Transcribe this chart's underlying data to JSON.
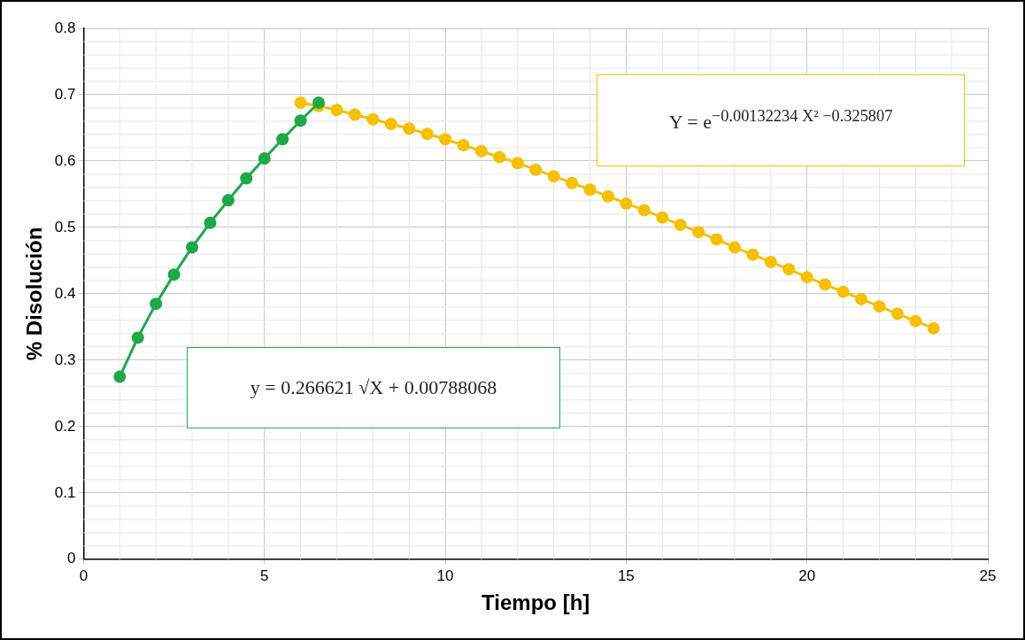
{
  "chart_data": {
    "type": "line",
    "xlabel": "Tiempo [h]",
    "ylabel": "% Disolución",
    "xlim": [
      0,
      25
    ],
    "xticks": [
      0,
      5,
      10,
      15,
      20,
      25
    ],
    "ylim": [
      0,
      0.8
    ],
    "yticks": [
      0,
      0.1,
      0.2,
      0.3,
      0.4,
      0.5,
      0.6,
      0.7,
      0.8
    ],
    "grid": true,
    "legend": false,
    "marker": "circle",
    "line_style": "solid",
    "series": [
      {
        "color": "#f5c000",
        "x": [
          6,
          6.5,
          7,
          7.5,
          8,
          8.5,
          9,
          9.5,
          10,
          10.5,
          11,
          11.5,
          12,
          12.5,
          13,
          13.5,
          14,
          14.5,
          15,
          15.5,
          16,
          16.5,
          17,
          17.5,
          18,
          18.5,
          19,
          19.5,
          20,
          20.5,
          21,
          21.5,
          22,
          22.5,
          23,
          23.5
        ],
        "values": [
          0.688,
          0.683,
          0.677,
          0.67,
          0.663,
          0.656,
          0.649,
          0.641,
          0.633,
          0.624,
          0.615,
          0.606,
          0.597,
          0.587,
          0.577,
          0.567,
          0.557,
          0.547,
          0.536,
          0.526,
          0.515,
          0.504,
          0.493,
          0.482,
          0.47,
          0.459,
          0.448,
          0.437,
          0.425,
          0.414,
          0.403,
          0.392,
          0.381,
          0.37,
          0.359,
          0.348
        ]
      },
      {
        "color": "#1ea84a",
        "x": [
          1,
          1.5,
          2,
          2.5,
          3,
          3.5,
          4,
          4.5,
          5,
          5.5,
          6,
          6.5
        ],
        "values": [
          0.275,
          0.334,
          0.385,
          0.429,
          0.47,
          0.507,
          0.541,
          0.574,
          0.604,
          0.633,
          0.661,
          0.688
        ]
      }
    ],
    "annotations": [
      "Y = e$^{−0.00132234 X² −0.325807}$",
      "y = 0.266621 √X + 0.00788068"
    ]
  }
}
